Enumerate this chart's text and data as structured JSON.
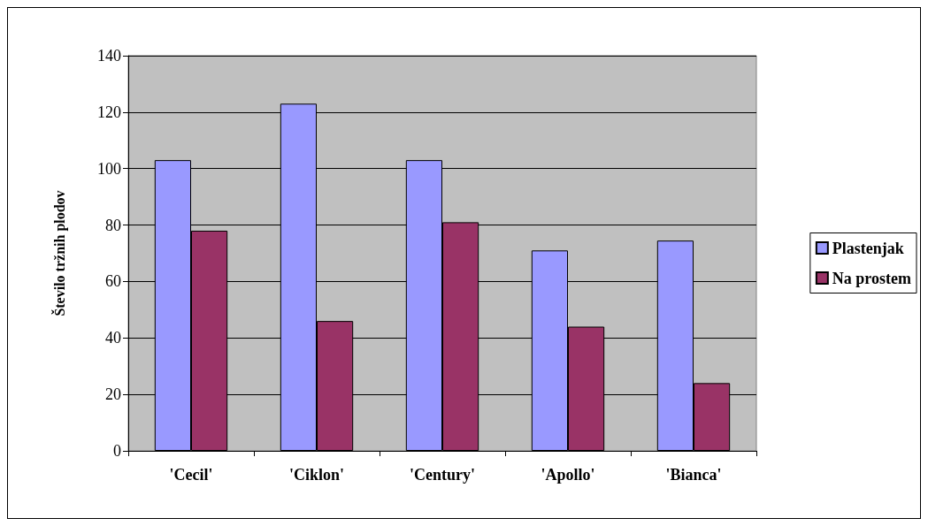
{
  "chart_data": {
    "type": "bar",
    "ylabel": "Število tržnih plodov",
    "categories": [
      "'Cecil'",
      "'Ciklon'",
      "'Century'",
      "'Apollo'",
      "'Bianca'"
    ],
    "series": [
      {
        "name": "Plastenjak",
        "color": "#9999ff",
        "values": [
          103,
          123,
          103,
          71,
          74.5
        ]
      },
      {
        "name": "Na prostem",
        "color": "#993366",
        "values": [
          78,
          46,
          81,
          44,
          24
        ]
      }
    ],
    "ylim": [
      0,
      140
    ],
    "yticks": [
      0,
      20,
      40,
      60,
      80,
      100,
      120,
      140
    ],
    "grid": "y",
    "legend": "right"
  }
}
